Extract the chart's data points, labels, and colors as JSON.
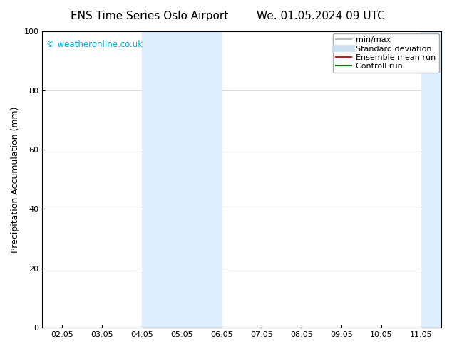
{
  "title_left": "ENS Time Series Oslo Airport",
  "title_right": "We. 01.05.2024 09 UTC",
  "ylabel": "Precipitation Accumulation (mm)",
  "ylim": [
    0,
    100
  ],
  "yticks": [
    0,
    20,
    40,
    60,
    80,
    100
  ],
  "x_labels": [
    "02.05",
    "03.05",
    "04.05",
    "05.05",
    "06.05",
    "07.05",
    "08.05",
    "09.05",
    "10.05",
    "11.05"
  ],
  "x_positions": [
    0,
    1,
    2,
    3,
    4,
    5,
    6,
    7,
    8,
    9
  ],
  "x_min": -0.5,
  "x_max": 9.5,
  "shaded_bands": [
    {
      "x_start": 2.0,
      "x_end": 4.0,
      "color": "#ddeeff"
    },
    {
      "x_start": 9.0,
      "x_end": 9.5,
      "color": "#ddeeff"
    }
  ],
  "watermark_text": "© weatheronline.co.uk",
  "watermark_color": "#00aadd",
  "legend_items": [
    {
      "label": "min/max",
      "color": "#bbbbbb",
      "lw": 1.5,
      "style": "solid"
    },
    {
      "label": "Standard deviation",
      "color": "#cce0f0",
      "lw": 7,
      "style": "solid"
    },
    {
      "label": "Ensemble mean run",
      "color": "red",
      "lw": 1.5,
      "style": "solid"
    },
    {
      "label": "Controll run",
      "color": "green",
      "lw": 1.5,
      "style": "solid"
    }
  ],
  "background_color": "#ffffff",
  "title_fontsize": 11,
  "axis_fontsize": 9,
  "tick_fontsize": 8,
  "legend_fontsize": 8
}
